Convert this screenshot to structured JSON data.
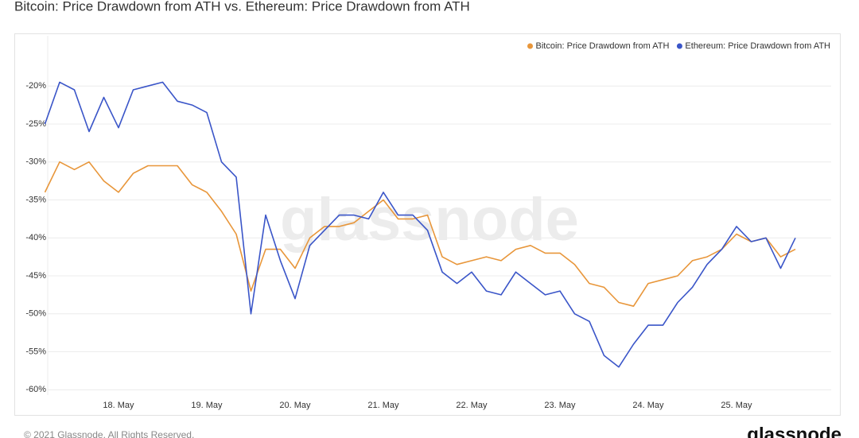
{
  "chart_data": {
    "type": "line",
    "title": "Bitcoin: Price Drawdown from ATH vs. Ethereum: Price Drawdown from ATH",
    "categories": [
      null,
      null,
      null,
      null,
      null,
      "18. May",
      null,
      null,
      null,
      null,
      null,
      "19. May",
      null,
      null,
      null,
      null,
      null,
      "20. May",
      null,
      null,
      null,
      null,
      null,
      "21. May",
      null,
      null,
      null,
      null,
      null,
      "22. May",
      null,
      null,
      null,
      null,
      null,
      "23. May",
      null,
      null,
      null,
      null,
      null,
      "24. May",
      null,
      null,
      null,
      null,
      null,
      "25. May",
      null,
      null,
      null,
      null
    ],
    "series": [
      {
        "name": "Bitcoin: Price Drawdown from ATH",
        "color": "#e8963a",
        "values": [
          -34,
          -30,
          -31,
          -30,
          -32.5,
          -34,
          -31.5,
          -30.5,
          -30.5,
          -30.5,
          -33,
          -34,
          -36.5,
          -39.5,
          -47,
          -41.5,
          -41.5,
          -44,
          -40,
          -38.5,
          -38.5,
          -38,
          -36.5,
          -35,
          -37.5,
          -37.5,
          -37,
          -42.5,
          -43.5,
          -43,
          -42.5,
          -43,
          -41.5,
          -41,
          -42,
          -42,
          -43.5,
          -46,
          -46.5,
          -48.5,
          -49,
          -46,
          -45.5,
          -45,
          -43,
          -42.5,
          -41.5,
          -39.5,
          -40.5,
          -40,
          -42.5,
          -41.5
        ]
      },
      {
        "name": "Ethereum: Price Drawdown from ATH",
        "color": "#3a55c8",
        "values": [
          -25,
          -19.5,
          -20.5,
          -26,
          -21.5,
          -25.5,
          -20.5,
          -20,
          -19.5,
          -22,
          -22.5,
          -23.5,
          -30,
          -32,
          -50,
          -37,
          -43,
          -48,
          -41,
          -39,
          -37,
          -37,
          -37.5,
          -34,
          -37,
          -37,
          -39,
          -44.5,
          -46,
          -44.5,
          -47,
          -47.5,
          -44.5,
          -46,
          -47.5,
          -47,
          -50,
          -51,
          -55.5,
          -57,
          -54,
          -51.5,
          -51.5,
          -48.5,
          -46.5,
          -43.5,
          -41.5,
          -38.5,
          -40.5,
          -40,
          -44,
          -40
        ]
      }
    ],
    "ylim": [
      -60.7,
      -16
    ],
    "yticks": [
      {
        "value": -60,
        "label": "-60%"
      },
      {
        "value": -55,
        "label": "-55%"
      },
      {
        "value": -50,
        "label": "-50%"
      },
      {
        "value": -45,
        "label": "-45%"
      },
      {
        "value": -40,
        "label": "-40%"
      },
      {
        "value": -35,
        "label": "-35%"
      },
      {
        "value": -30,
        "label": "-30%"
      },
      {
        "value": -25,
        "label": "-25%"
      },
      {
        "value": -20,
        "label": "-20%"
      }
    ],
    "grid": true,
    "legend": "top-right",
    "watermark": "glassnode"
  },
  "footer": "© 2021 Glassnode. All Rights Reserved.",
  "logo": "glassnode"
}
